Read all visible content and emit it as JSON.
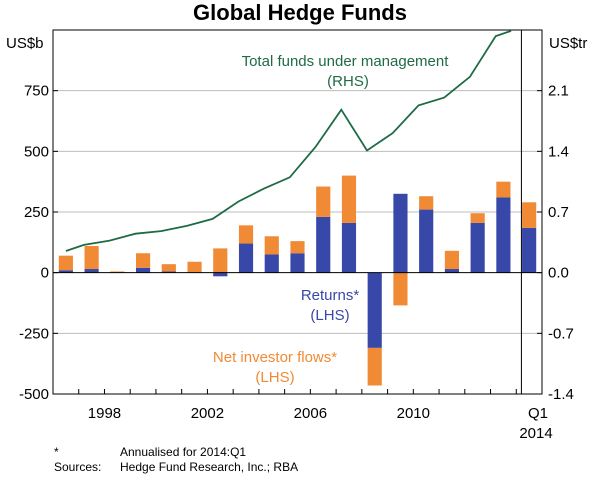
{
  "chart_data": {
    "type": "bar+line",
    "title": "Global Hedge Funds",
    "left_axis": {
      "unit": "US$b",
      "ylim": [
        -500,
        1000
      ],
      "ticks": [
        -500,
        -250,
        0,
        250,
        500,
        750
      ],
      "tick_labels": [
        "-500",
        "-250",
        "0",
        "250",
        "500",
        "750"
      ]
    },
    "right_axis": {
      "unit": "US$tr",
      "ylim": [
        -1.4,
        2.8
      ],
      "ticks": [
        -1.4,
        -0.7,
        0.0,
        0.7,
        1.4,
        2.1
      ],
      "tick_labels": [
        "-1.4",
        "-0.7",
        "0.0",
        "0.7",
        "1.4",
        "2.1"
      ]
    },
    "x_axis": {
      "tick_labels": [
        {
          "text": "1998",
          "year": 1998
        },
        {
          "text": "2002",
          "year": 2002
        },
        {
          "text": "2006",
          "year": 2006
        },
        {
          "text": "2010",
          "year": 2010
        }
      ],
      "last_label": {
        "line1": "Q1",
        "line2": "2014"
      },
      "vertical_marker_year": 2013.7
    },
    "categories": [
      "1996",
      "1997",
      "1998",
      "1999",
      "2000",
      "2001",
      "2002",
      "2003",
      "2004",
      "2005",
      "2006",
      "2007",
      "2008",
      "2009",
      "2010",
      "2011",
      "2012",
      "2013",
      "Q1 2014"
    ],
    "bar_series": [
      {
        "name": "Returns",
        "color": "#3848a8",
        "values": [
          10,
          15,
          0,
          20,
          5,
          0,
          -15,
          120,
          75,
          80,
          230,
          205,
          -310,
          325,
          260,
          15,
          205,
          310,
          185
        ]
      },
      {
        "name": "Net investor flows",
        "color": "#f08a35",
        "values": [
          60,
          95,
          5,
          60,
          30,
          45,
          100,
          75,
          75,
          50,
          125,
          195,
          -155,
          -135,
          55,
          75,
          40,
          65,
          105
        ]
      }
    ],
    "line_series": {
      "name": "Total funds under management",
      "axis": "right",
      "color": "#1f6b45",
      "x": [
        1996,
        1996.7,
        1997.7,
        1998.7,
        1999.7,
        2000.7,
        2001.7,
        2002.7,
        2003.7,
        2004.7,
        2005.7,
        2006.7,
        2007.7,
        2008.7,
        2009.7,
        2010.7,
        2011.7,
        2012.7,
        2013.3
      ],
      "values": [
        0.25,
        0.32,
        0.37,
        0.45,
        0.48,
        0.54,
        0.62,
        0.82,
        0.97,
        1.1,
        1.45,
        1.88,
        1.41,
        1.61,
        1.93,
        2.02,
        2.26,
        2.73,
        2.79
      ]
    },
    "annotations": {
      "line_label": {
        "line1": "Total funds under management",
        "line2": "(RHS)"
      },
      "returns_label": {
        "line1": "Returns*",
        "line2": "(LHS)"
      },
      "flows_label": {
        "line1": "Net investor flows*",
        "line2": "(LHS)"
      }
    }
  },
  "footnotes": {
    "note_marker": "*",
    "note_text": "Annualised for 2014:Q1",
    "sources_label": "Sources:",
    "sources_text": "Hedge Fund Research, Inc.; RBA"
  }
}
